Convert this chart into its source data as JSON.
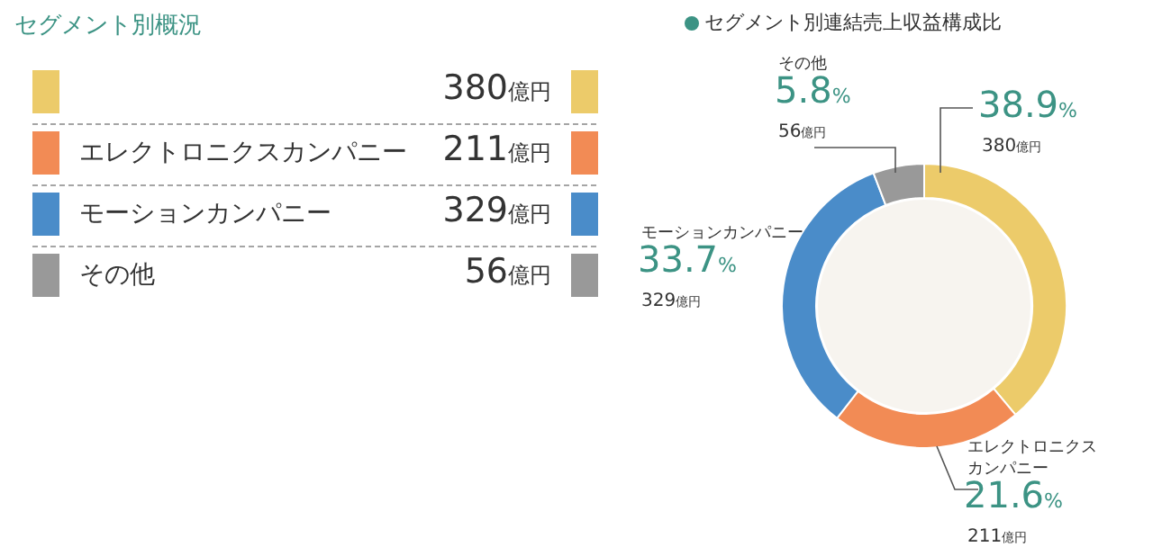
{
  "chart_data": [
    {
      "type": "other",
      "title": "セグメント別概況",
      "categories": [
        null,
        "エレクトロニクスカンパニー",
        "モーションカンパニー",
        "その他"
      ],
      "colors": [
        "#eccb6a",
        "#f28b55",
        "#4a8cc9",
        "#999999"
      ],
      "value_labels": [
        "380億円",
        "211億円",
        "329億円",
        "56億円"
      ]
    },
    {
      "type": "donut",
      "title": "セグメント別連結売上収益構成比",
      "categories": [
        null,
        "エレクトロニクスカンパニー",
        "モーションカンパニー",
        "その他"
      ],
      "values": [
        38.9,
        21.6,
        33.7,
        5.8
      ],
      "colors": [
        "#eccb6a",
        "#f28b55",
        "#4a8cc9",
        "#999999"
      ],
      "value_labels": [
        "38.9%",
        "21.6%",
        "33.7%",
        "5.8%"
      ],
      "annotations": [
        "380億円",
        "211億円",
        "329億円",
        "56億円"
      ]
    }
  ]
}
